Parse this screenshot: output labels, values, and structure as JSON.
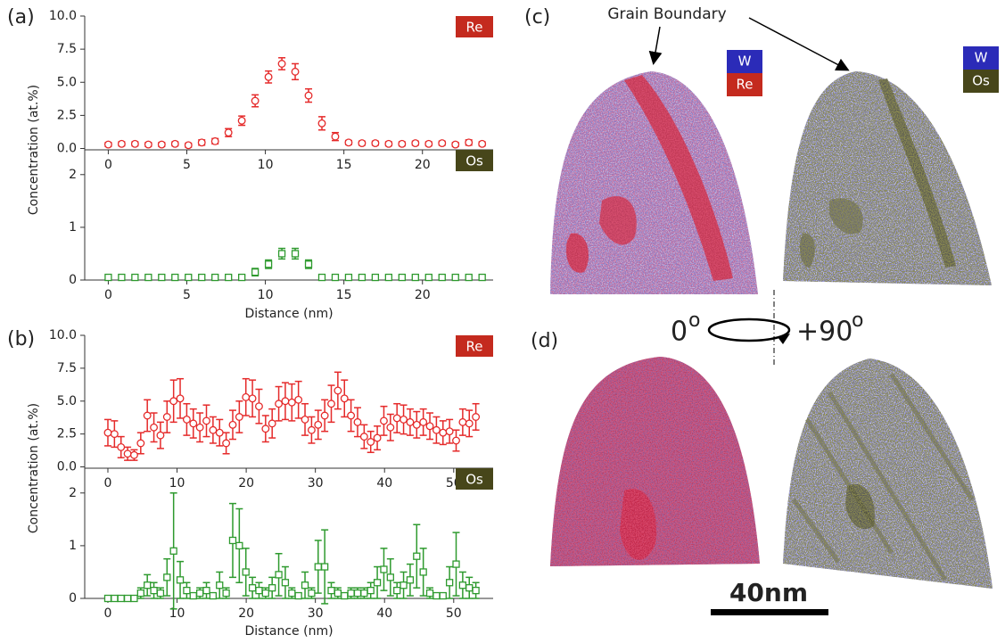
{
  "figure": {
    "panel_labels": [
      "(a)",
      "(b)",
      "(c)",
      "(d)"
    ],
    "annotation": "Grain Boundary",
    "image_legend": [
      "W",
      "Re",
      "Os"
    ],
    "rotation": {
      "start": "0",
      "end": "+90",
      "degree_mark": "o"
    },
    "scale_bar": "40nm"
  },
  "chart_data": [
    {
      "type": "scatter",
      "legend": "upper right",
      "x": [
        0,
        0.85,
        1.7,
        2.55,
        3.4,
        4.25,
        5.1,
        5.95,
        6.8,
        7.65,
        8.5,
        9.35,
        10.2,
        11.05,
        11.9,
        12.75,
        13.6,
        14.45,
        15.3,
        16.15,
        17,
        17.85,
        18.7,
        19.55,
        20.4,
        21.25,
        22.1,
        22.95,
        23.8
      ],
      "series": [
        {
          "name": "Re",
          "color": "#e52a2a",
          "legend_color": "#c42a1e",
          "marker": "circle",
          "values": [
            0.3,
            0.35,
            0.35,
            0.3,
            0.3,
            0.35,
            0.25,
            0.45,
            0.55,
            1.2,
            2.1,
            3.6,
            5.4,
            6.4,
            5.8,
            4.0,
            1.9,
            0.9,
            0.45,
            0.4,
            0.4,
            0.35,
            0.35,
            0.4,
            0.35,
            0.4,
            0.3,
            0.45,
            0.35
          ],
          "errors": [
            0.15,
            0.15,
            0.15,
            0.15,
            0.15,
            0.15,
            0.15,
            0.2,
            0.2,
            0.3,
            0.35,
            0.45,
            0.45,
            0.45,
            0.6,
            0.5,
            0.5,
            0.3,
            0.15,
            0.15,
            0.15,
            0.15,
            0.15,
            0.15,
            0.15,
            0.15,
            0.15,
            0.2,
            0.15
          ]
        }
      ],
      "xlim": [
        -1.5,
        24.5
      ],
      "ylim": [
        -0.1,
        10.0
      ],
      "xticks": [
        0,
        5,
        10,
        15,
        20
      ],
      "yticks": [
        {
          "value": 0,
          "label": "0.0"
        },
        {
          "value": 2.5,
          "label": "2.5"
        },
        {
          "value": 5,
          "label": "5.0"
        },
        {
          "value": 7.5,
          "label": "7.5"
        },
        {
          "value": 10,
          "label": "10.0"
        }
      ]
    },
    {
      "type": "scatter",
      "legend": "upper right",
      "x_label": "Distance (nm)",
      "y_label": "Concentration (at.%)",
      "x": [
        0,
        0.85,
        1.7,
        2.55,
        3.4,
        4.25,
        5.1,
        5.95,
        6.8,
        7.65,
        8.5,
        9.35,
        10.2,
        11.05,
        11.9,
        12.75,
        13.6,
        14.45,
        15.3,
        16.15,
        17,
        17.85,
        18.7,
        19.55,
        20.4,
        21.25,
        22.1,
        22.95,
        23.8
      ],
      "series": [
        {
          "name": "Os",
          "color": "#2e9a2e",
          "legend_color": "#47461a",
          "marker": "square",
          "values": [
            0.05,
            0.05,
            0.05,
            0.05,
            0.05,
            0.05,
            0.05,
            0.05,
            0.05,
            0.05,
            0.05,
            0.15,
            0.3,
            0.5,
            0.5,
            0.3,
            0.05,
            0.05,
            0.05,
            0.05,
            0.05,
            0.05,
            0.05,
            0.05,
            0.05,
            0.05,
            0.05,
            0.05,
            0.05
          ],
          "errors": [
            0.03,
            0.03,
            0.03,
            0.03,
            0.03,
            0.03,
            0.03,
            0.03,
            0.03,
            0.03,
            0.03,
            0.07,
            0.08,
            0.1,
            0.1,
            0.08,
            0.03,
            0.03,
            0.03,
            0.03,
            0.03,
            0.03,
            0.03,
            0.03,
            0.03,
            0.03,
            0.03,
            0.03,
            0.03
          ]
        }
      ],
      "xlim": [
        -1.5,
        24.5
      ],
      "ylim": [
        0,
        2.47
      ],
      "xticks": [
        0,
        5,
        10,
        15,
        20
      ],
      "yticks": [
        0,
        1,
        2
      ]
    },
    {
      "type": "scatter",
      "legend": "upper right",
      "x": [
        0,
        0.95,
        1.9,
        2.85,
        3.8,
        4.75,
        5.7,
        6.65,
        7.6,
        8.55,
        9.5,
        10.45,
        11.4,
        12.35,
        13.3,
        14.25,
        15.2,
        16.15,
        17.1,
        18.05,
        19,
        19.95,
        20.9,
        21.85,
        22.8,
        23.75,
        24.7,
        25.65,
        26.6,
        27.55,
        28.5,
        29.45,
        30.4,
        31.35,
        32.3,
        33.25,
        34.2,
        35.15,
        36.1,
        37.05,
        38,
        38.95,
        39.9,
        40.85,
        41.8,
        42.75,
        43.7,
        44.65,
        45.6,
        46.55,
        47.5,
        48.45,
        49.4,
        50.35,
        51.3,
        52.25,
        53.2
      ],
      "series": [
        {
          "name": "Re",
          "color": "#e52a2a",
          "legend_color": "#c42a1e",
          "marker": "circle",
          "values": [
            2.6,
            2.5,
            1.5,
            1.0,
            0.9,
            1.8,
            3.9,
            3.0,
            2.4,
            3.8,
            5.0,
            5.2,
            3.6,
            3.3,
            3.0,
            3.5,
            2.8,
            2.6,
            1.8,
            3.2,
            3.8,
            5.3,
            5.2,
            4.6,
            2.9,
            3.3,
            4.8,
            5.0,
            4.9,
            5.1,
            3.6,
            2.8,
            3.2,
            3.9,
            4.8,
            5.8,
            5.2,
            3.9,
            3.4,
            2.3,
            1.9,
            2.2,
            3.5,
            3.0,
            3.7,
            3.6,
            3.4,
            3.2,
            3.4,
            3.1,
            2.8,
            2.6,
            2.7,
            2.0,
            3.4,
            3.3,
            3.8
          ],
          "errors": [
            1.0,
            1.0,
            0.8,
            0.5,
            0.4,
            0.8,
            1.2,
            1.1,
            1.0,
            1.2,
            1.6,
            1.5,
            1.2,
            1.1,
            1.1,
            1.2,
            1.0,
            1.0,
            0.8,
            1.1,
            1.2,
            1.4,
            1.4,
            1.3,
            1.0,
            1.1,
            1.3,
            1.4,
            1.4,
            1.4,
            1.2,
            1.0,
            1.1,
            1.2,
            1.4,
            1.4,
            1.4,
            1.2,
            1.1,
            0.9,
            0.8,
            0.9,
            1.1,
            1.0,
            1.1,
            1.1,
            1.0,
            1.0,
            1.0,
            1.0,
            1.0,
            0.9,
            0.9,
            0.8,
            1.0,
            1.0,
            1.0
          ]
        }
      ],
      "xlim": [
        -3.35,
        55.7
      ],
      "ylim": [
        -0.1,
        10.0
      ],
      "xticks": [
        0,
        10,
        20,
        30,
        40,
        50
      ],
      "yticks": [
        {
          "value": 0,
          "label": "0.0"
        },
        {
          "value": 2.5,
          "label": "2.5"
        },
        {
          "value": 5,
          "label": "5.0"
        },
        {
          "value": 7.5,
          "label": "7.5"
        },
        {
          "value": 10,
          "label": "10.0"
        }
      ]
    },
    {
      "type": "scatter",
      "legend": "upper right",
      "x_label": "Distance (nm)",
      "y_label": "Concentration (at.%)",
      "x": [
        0,
        0.95,
        1.9,
        2.85,
        3.8,
        4.75,
        5.7,
        6.65,
        7.6,
        8.55,
        9.5,
        10.45,
        11.4,
        12.35,
        13.3,
        14.25,
        15.2,
        16.15,
        17.1,
        18.05,
        19,
        19.95,
        20.9,
        21.85,
        22.8,
        23.75,
        24.7,
        25.65,
        26.6,
        27.55,
        28.5,
        29.45,
        30.4,
        31.35,
        32.3,
        33.25,
        34.2,
        35.15,
        36.1,
        37.05,
        38,
        38.95,
        39.9,
        40.85,
        41.8,
        42.75,
        43.7,
        44.65,
        45.6,
        46.55,
        47.5,
        48.45,
        49.4,
        50.35,
        51.3,
        52.25,
        53.2
      ],
      "series": [
        {
          "name": "Os",
          "color": "#2e9a2e",
          "legend_color": "#47461a",
          "marker": "square",
          "values": [
            0,
            0,
            0,
            0,
            0,
            0.1,
            0.25,
            0.15,
            0.1,
            0.4,
            0.9,
            0.35,
            0.15,
            0.05,
            0.1,
            0.15,
            0.05,
            0.25,
            0.1,
            1.1,
            1.0,
            0.5,
            0.2,
            0.15,
            0.1,
            0.2,
            0.45,
            0.3,
            0.1,
            0.05,
            0.25,
            0.1,
            0.6,
            0.6,
            0.15,
            0.1,
            0.05,
            0.1,
            0.1,
            0.1,
            0.15,
            0.3,
            0.55,
            0.4,
            0.15,
            0.25,
            0.35,
            0.8,
            0.5,
            0.1,
            0.05,
            0.05,
            0.3,
            0.65,
            0.25,
            0.2,
            0.15
          ],
          "errors": [
            0.02,
            0.02,
            0.02,
            0.02,
            0.02,
            0.1,
            0.2,
            0.15,
            0.1,
            0.35,
            1.1,
            0.35,
            0.15,
            0.05,
            0.1,
            0.15,
            0.05,
            0.25,
            0.1,
            0.7,
            0.7,
            0.45,
            0.2,
            0.15,
            0.1,
            0.2,
            0.4,
            0.3,
            0.1,
            0.05,
            0.25,
            0.1,
            0.5,
            0.7,
            0.15,
            0.1,
            0.05,
            0.1,
            0.1,
            0.1,
            0.15,
            0.3,
            0.4,
            0.35,
            0.15,
            0.25,
            0.3,
            0.6,
            0.45,
            0.1,
            0.05,
            0.05,
            0.3,
            0.6,
            0.25,
            0.2,
            0.15
          ]
        }
      ],
      "xlim": [
        -3.35,
        55.7
      ],
      "ylim": [
        0,
        2.47
      ],
      "xticks": [
        0,
        10,
        20,
        30,
        40,
        50
      ],
      "yticks": [
        0,
        1,
        2
      ]
    }
  ]
}
